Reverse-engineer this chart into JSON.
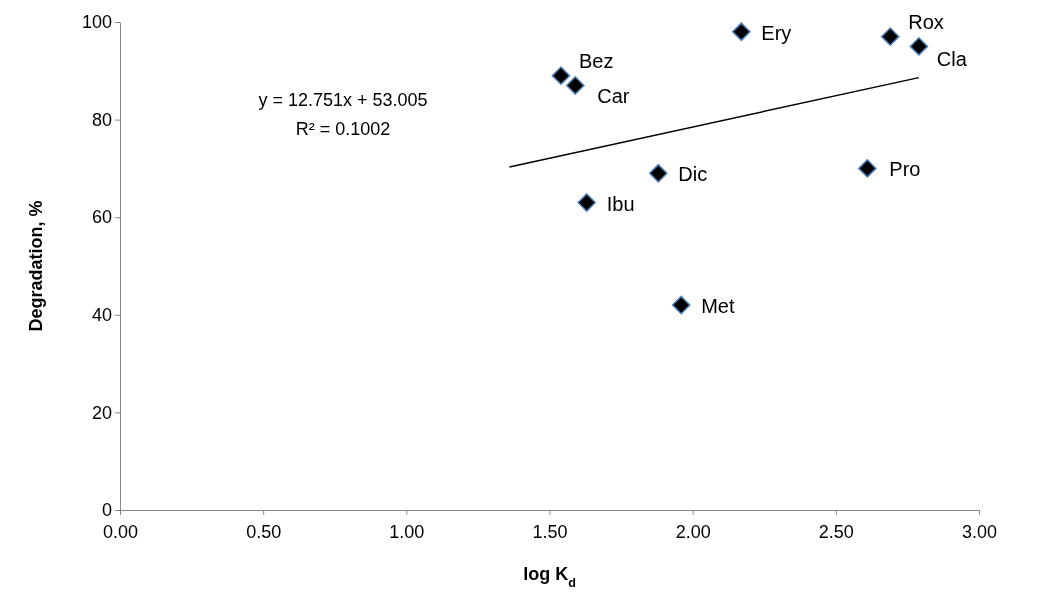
{
  "chart_data": {
    "type": "scatter",
    "xlabel": "log K$_{d}$",
    "ylabel": "Degradation, %",
    "xlim": [
      0,
      3
    ],
    "xticks": [
      {
        "value": 0,
        "label": "0.00"
      },
      {
        "value": 0.5,
        "label": "0.50"
      },
      {
        "value": 1,
        "label": "1.00"
      },
      {
        "value": 1.5,
        "label": "1.50"
      },
      {
        "value": 2,
        "label": "2.00"
      },
      {
        "value": 2.5,
        "label": "2.50"
      },
      {
        "value": 3,
        "label": "3.00"
      }
    ],
    "ylim": [
      0,
      100
    ],
    "yticks": [
      0,
      20,
      40,
      60,
      80,
      100
    ],
    "marker": "diamond",
    "grid": false,
    "legend": false,
    "series": [
      {
        "name": "Bez",
        "color": "#000000",
        "x": [
          1.54
        ],
        "values": [
          89
        ]
      },
      {
        "name": "Car",
        "color": "#000000",
        "x": [
          1.59
        ],
        "values": [
          87
        ]
      },
      {
        "name": "Ery",
        "color": "#000000",
        "x": [
          2.17
        ],
        "values": [
          98
        ]
      },
      {
        "name": "Dic",
        "color": "#000000",
        "x": [
          1.88
        ],
        "values": [
          69
        ]
      },
      {
        "name": "Ibu",
        "color": "#000000",
        "x": [
          1.63
        ],
        "values": [
          63
        ]
      },
      {
        "name": "Met",
        "color": "#000000",
        "x": [
          1.96
        ],
        "values": [
          42
        ]
      },
      {
        "name": "Rox",
        "color": "#000000",
        "x": [
          2.69
        ],
        "values": [
          97
        ]
      },
      {
        "name": "Cla",
        "color": "#000000",
        "x": [
          2.79
        ],
        "values": [
          95
        ]
      },
      {
        "name": "Pro",
        "color": "#000000",
        "x": [
          2.61
        ],
        "values": [
          70
        ]
      },
      {
        "type": "line",
        "marker": "none",
        "color": "#000000",
        "x": [
          1.36,
          2.79
        ],
        "values": [
          70.3,
          88.6
        ]
      }
    ],
    "annotations": [
      "y = 12.751x + 53.005",
      "R² = 0.1002"
    ]
  }
}
